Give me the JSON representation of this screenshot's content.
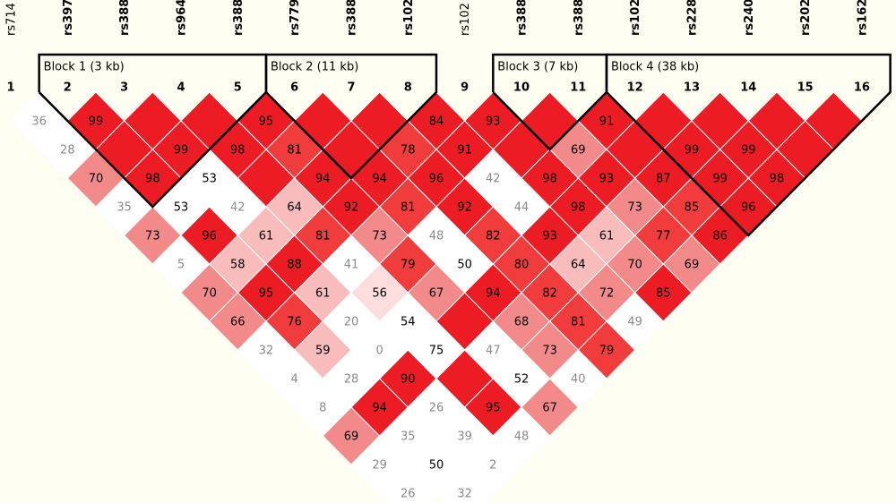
{
  "snps": {
    "names": [
      "rs714",
      "rs397",
      "rs388",
      "rs964",
      "rs388",
      "rs779",
      "rs388",
      "rs102",
      "rs102",
      "rs388",
      "rs388",
      "rs102",
      "rs228",
      "rs240",
      "rs202",
      "rs162"
    ],
    "bold": [
      false,
      true,
      true,
      true,
      true,
      true,
      true,
      true,
      false,
      true,
      true,
      true,
      true,
      true,
      true,
      true
    ],
    "indices": [
      1,
      2,
      3,
      4,
      5,
      6,
      7,
      8,
      9,
      10,
      11,
      12,
      13,
      14,
      15,
      16
    ]
  },
  "blocks": [
    {
      "label": "Block 1 (3 kb)",
      "snps": [
        2,
        5
      ]
    },
    {
      "label": "Block 2 (11 kb)",
      "snps": [
        6,
        8
      ]
    },
    {
      "label": "Block 3 (7 kb)",
      "snps": [
        10,
        11
      ]
    },
    {
      "label": "Block 4 (38 kb)",
      "snps": [
        12,
        16
      ]
    }
  ],
  "palette": {
    "R": "#ec1c24",
    "R2": "#f03c3c",
    "P": "#f38a8a",
    "L": "#f8bcbc",
    "VL": "#fcdcdc",
    "W": "#ffffff",
    "G": "#8a8a8a",
    "K": "#000000"
  },
  "ld_rows": [
    {
      "values": [
        36,
        99,
        100,
        100,
        95,
        100,
        100,
        84,
        93,
        100,
        91,
        100,
        100,
        100,
        100
      ],
      "fills": [
        "W",
        "R",
        "R",
        "R",
        "R",
        "R",
        "R",
        "R",
        "R",
        "R",
        "R",
        "R",
        "R",
        "R",
        "R"
      ],
      "inks": [
        "G",
        "K",
        null,
        null,
        "K",
        null,
        null,
        "K",
        "K",
        null,
        "K",
        null,
        null,
        null,
        null
      ]
    },
    {
      "values": [
        28,
        100,
        99,
        98,
        81,
        100,
        78,
        91,
        100,
        69,
        100,
        99,
        99,
        100
      ],
      "fills": [
        "W",
        "R",
        "R",
        "R",
        "R2",
        "R",
        "R2",
        "R",
        "R",
        "P",
        "R",
        "R",
        "R",
        "R"
      ],
      "inks": [
        "G",
        null,
        "K",
        "K",
        "K",
        null,
        "K",
        "K",
        null,
        "K",
        null,
        "K",
        "K",
        null
      ]
    },
    {
      "values": [
        70,
        98,
        53,
        100,
        94,
        94,
        96,
        42,
        98,
        93,
        87,
        99,
        98
      ],
      "fills": [
        "P",
        "R",
        "W",
        "R",
        "R",
        "R",
        "R",
        "W",
        "R",
        "R",
        "R",
        "R",
        "R"
      ],
      "inks": [
        "K",
        "K",
        "K",
        null,
        "K",
        "K",
        "K",
        "G",
        "K",
        "K",
        "K",
        "K",
        "K"
      ]
    },
    {
      "values": [
        35,
        53,
        42,
        64,
        92,
        81,
        92,
        44,
        98,
        73,
        85,
        96
      ],
      "fills": [
        "W",
        "W",
        "W",
        "L",
        "R",
        "R2",
        "R",
        "W",
        "R",
        "P",
        "R2",
        "R"
      ],
      "inks": [
        "G",
        "K",
        "G",
        "K",
        "K",
        "K",
        "K",
        "G",
        "K",
        "K",
        "K",
        "K"
      ]
    },
    {
      "values": [
        73,
        96,
        61,
        81,
        73,
        48,
        82,
        93,
        61,
        77,
        86
      ],
      "fills": [
        "P",
        "R",
        "L",
        "R2",
        "P",
        "W",
        "R2",
        "R",
        "L",
        "R2",
        "R"
      ],
      "inks": [
        "K",
        "K",
        "K",
        "K",
        "K",
        "G",
        "K",
        "K",
        "K",
        "K",
        "K"
      ]
    },
    {
      "values": [
        5,
        58,
        88,
        41,
        79,
        50,
        80,
        64,
        70,
        69
      ],
      "fills": [
        "W",
        "L",
        "R",
        "W",
        "R2",
        "W",
        "R2",
        "L",
        "P",
        "P"
      ],
      "inks": [
        "G",
        "K",
        "K",
        "G",
        "K",
        "K",
        "K",
        "K",
        "K",
        "K"
      ]
    },
    {
      "values": [
        70,
        95,
        61,
        56,
        67,
        94,
        82,
        72,
        85
      ],
      "fills": [
        "P",
        "R",
        "L",
        "VL",
        "P",
        "R",
        "R2",
        "P",
        "R"
      ],
      "inks": [
        "K",
        "K",
        "K",
        "K",
        "K",
        "K",
        "K",
        "K",
        "K"
      ]
    },
    {
      "values": [
        66,
        76,
        20,
        54,
        100,
        68,
        81,
        49
      ],
      "fills": [
        "P",
        "R2",
        "W",
        "W",
        "R",
        "P",
        "R2",
        "W"
      ],
      "inks": [
        "K",
        "K",
        "G",
        "K",
        null,
        "K",
        "K",
        "G"
      ]
    },
    {
      "values": [
        32,
        59,
        0,
        75,
        47,
        73,
        79
      ],
      "fills": [
        "W",
        "L",
        "W",
        "W",
        "W",
        "P",
        "R2"
      ],
      "inks": [
        "G",
        "K",
        "G",
        "K",
        "G",
        "K",
        "K"
      ]
    },
    {
      "values": [
        4,
        28,
        90,
        100,
        52,
        40
      ],
      "fills": [
        "W",
        "W",
        "R",
        "R",
        "W",
        "W"
      ],
      "inks": [
        "G",
        "G",
        "K",
        null,
        "K",
        "G"
      ]
    },
    {
      "values": [
        8,
        94,
        26,
        95,
        67
      ],
      "fills": [
        "W",
        "R",
        "W",
        "R",
        "P"
      ],
      "inks": [
        "G",
        "K",
        "G",
        "K",
        "K"
      ]
    },
    {
      "values": [
        69,
        35,
        39,
        48
      ],
      "fills": [
        "P",
        "W",
        "W",
        "W"
      ],
      "inks": [
        "K",
        "G",
        "G",
        "G"
      ]
    },
    {
      "values": [
        29,
        50,
        2
      ],
      "fills": [
        "W",
        "W",
        "W"
      ],
      "inks": [
        "G",
        "K",
        "G"
      ]
    },
    {
      "values": [
        26,
        32
      ],
      "fills": [
        "W",
        "W"
      ],
      "inks": [
        "G",
        "G"
      ]
    }
  ]
}
